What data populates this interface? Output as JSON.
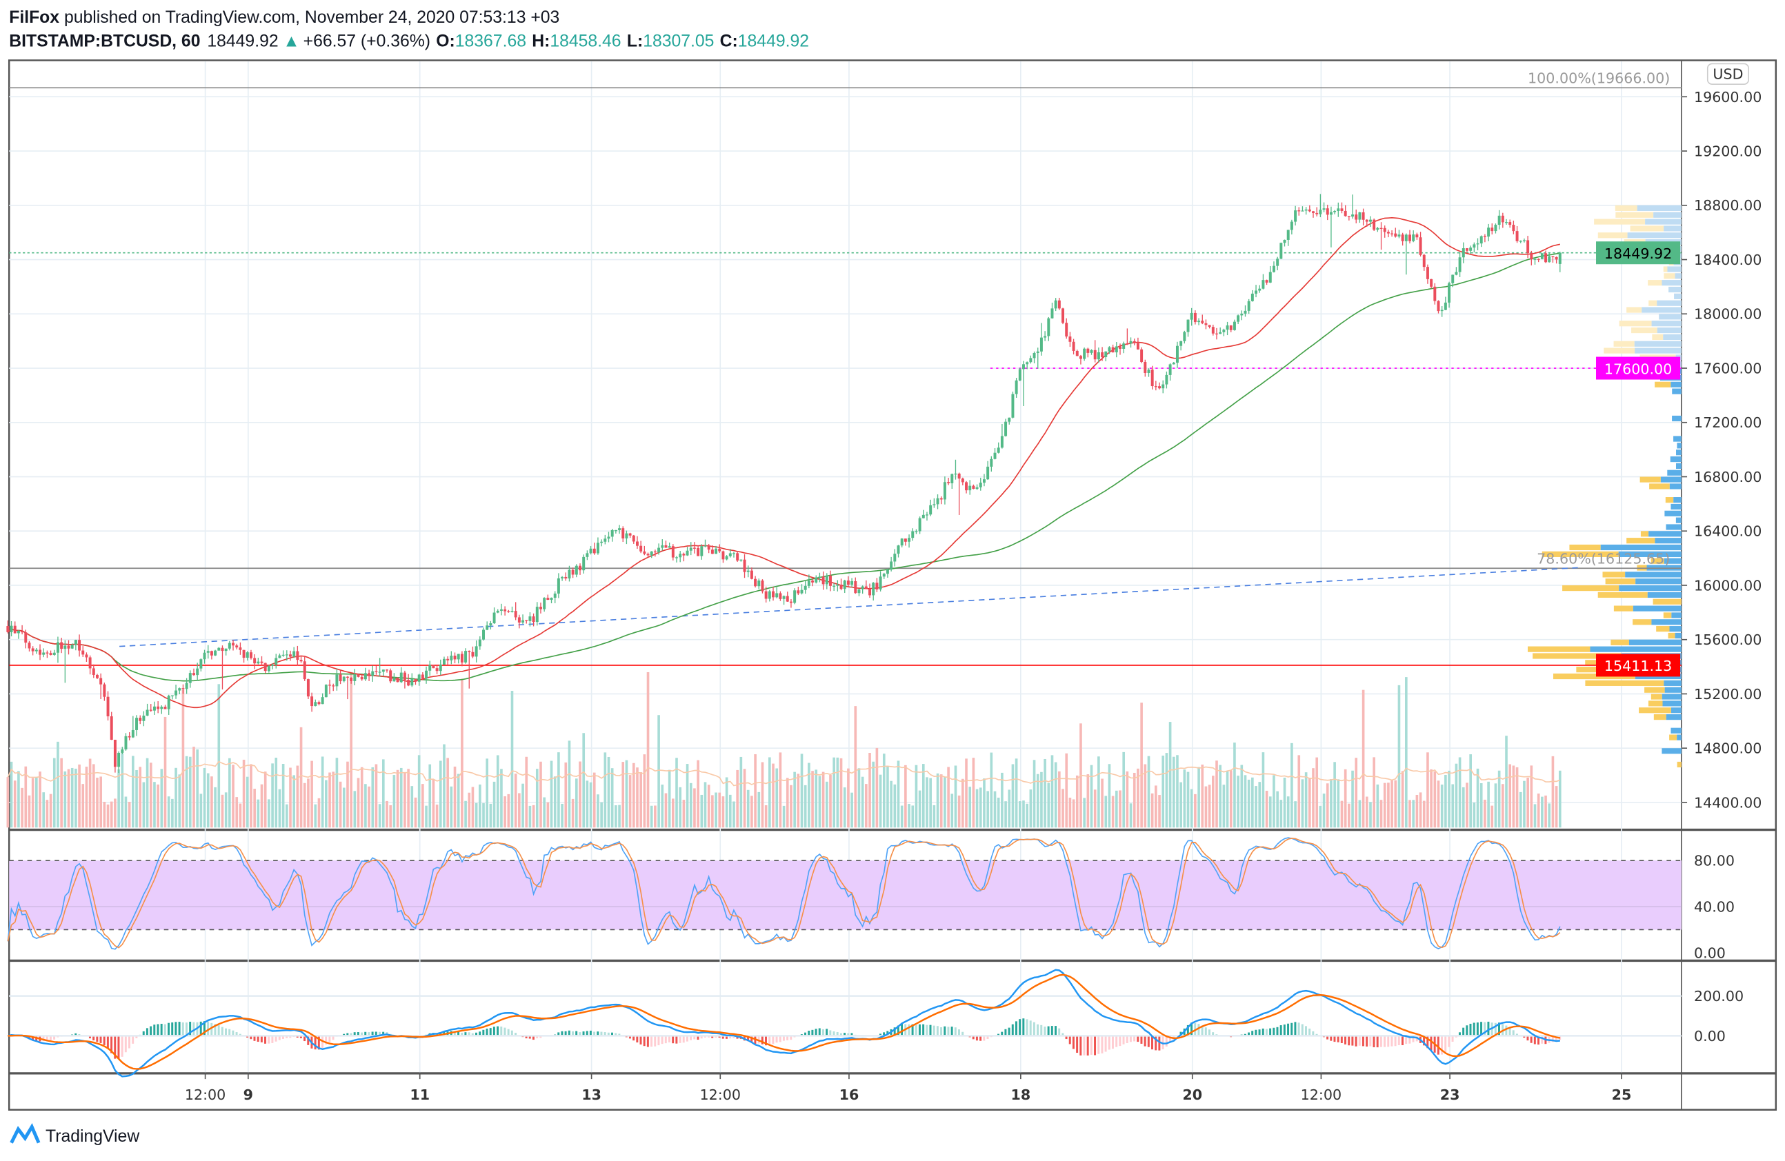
{
  "header": {
    "author": "FilFox",
    "published": " published on TradingView.com, November 24, 2020 07:53:13 +03",
    "symbol": "BITSTAMP:BTCUSD, 60",
    "last": "18449.92",
    "change": "+66.57 (+0.36%)",
    "o_label": "O:",
    "o": "18367.68",
    "h_label": "H:",
    "h": "18458.46",
    "l_label": "L:",
    "l": "18307.05",
    "c_label": "C:",
    "c": "18449.92"
  },
  "currency_button": "USD",
  "logo_text": "TradingView",
  "colors": {
    "up": "#26a69a",
    "down": "#ef5350",
    "last_badge": "#53b987",
    "level_magenta": "#ff00ff",
    "level_red": "#ff0000"
  },
  "chart_data": {
    "type": "candlestick",
    "symbol": "BITSTAMP:BTCUSD",
    "interval": "60",
    "ylim": [
      14300,
      19700
    ],
    "price_ticks": [
      "19600.00",
      "19200.00",
      "18800.00",
      "18400.00",
      "18000.00",
      "17600.00",
      "17200.00",
      "16800.00",
      "16400.00",
      "16000.00",
      "15600.00",
      "15200.00",
      "14800.00",
      "14400.00"
    ],
    "price_tick_values": [
      19600,
      19200,
      18800,
      18400,
      18000,
      17600,
      17200,
      16800,
      16400,
      16000,
      15600,
      15200,
      14800,
      14400
    ],
    "x_ticks": [
      {
        "label": "12:00",
        "day": 8.5
      },
      {
        "label": "9",
        "day": 9
      },
      {
        "label": "11",
        "day": 11
      },
      {
        "label": "13",
        "day": 13
      },
      {
        "label": "12:00",
        "day": 14.5
      },
      {
        "label": "16",
        "day": 16
      },
      {
        "label": "18",
        "day": 18
      },
      {
        "label": "20",
        "day": 20
      },
      {
        "label": "12:00",
        "day": 21.5
      },
      {
        "label": "23",
        "day": 23
      },
      {
        "label": "25",
        "day": 25
      }
    ],
    "approx_close_path": [
      [
        6.2,
        15700
      ],
      [
        6.6,
        15500
      ],
      [
        7.0,
        15600
      ],
      [
        7.3,
        15250
      ],
      [
        7.45,
        14700
      ],
      [
        7.7,
        15000
      ],
      [
        8.0,
        15100
      ],
      [
        8.3,
        15300
      ],
      [
        8.5,
        15500
      ],
      [
        8.8,
        15550
      ],
      [
        9.2,
        15400
      ],
      [
        9.6,
        15500
      ],
      [
        9.65,
        15300
      ],
      [
        9.75,
        15100
      ],
      [
        10.0,
        15300
      ],
      [
        10.5,
        15350
      ],
      [
        10.9,
        15300
      ],
      [
        11.2,
        15400
      ],
      [
        11.6,
        15500
      ],
      [
        11.9,
        15800
      ],
      [
        12.3,
        15750
      ],
      [
        12.6,
        16000
      ],
      [
        12.8,
        16100
      ],
      [
        13.1,
        16300
      ],
      [
        13.3,
        16400
      ],
      [
        13.6,
        16250
      ],
      [
        14.0,
        16250
      ],
      [
        14.4,
        16250
      ],
      [
        14.7,
        16200
      ],
      [
        15.0,
        15950
      ],
      [
        15.3,
        15900
      ],
      [
        15.6,
        16050
      ],
      [
        16.0,
        16000
      ],
      [
        16.2,
        15950
      ],
      [
        16.4,
        16050
      ],
      [
        16.6,
        16300
      ],
      [
        17.0,
        16600
      ],
      [
        17.2,
        16800
      ],
      [
        17.5,
        16700
      ],
      [
        17.8,
        17100
      ],
      [
        18.0,
        17600
      ],
      [
        18.2,
        17700
      ],
      [
        18.4,
        18100
      ],
      [
        18.6,
        17700
      ],
      [
        18.9,
        17700
      ],
      [
        19.3,
        17800
      ],
      [
        19.6,
        17400
      ],
      [
        20.0,
        18000
      ],
      [
        20.3,
        17800
      ],
      [
        20.6,
        18050
      ],
      [
        20.9,
        18300
      ],
      [
        21.2,
        18750
      ],
      [
        21.6,
        18750
      ],
      [
        22.0,
        18700
      ],
      [
        22.3,
        18600
      ],
      [
        22.6,
        18550
      ],
      [
        22.9,
        18000
      ],
      [
        23.1,
        18400
      ],
      [
        23.3,
        18550
      ],
      [
        23.6,
        18700
      ],
      [
        24.0,
        18400
      ],
      [
        24.3,
        18450
      ]
    ],
    "levels": [
      {
        "label": "100.00%(19666.00)",
        "value": 19666
      },
      {
        "label": "78.60%(16125.65)",
        "value": 16125.65
      },
      {
        "label": "17600.00",
        "value": 17600
      },
      {
        "label": "15411.13",
        "value": 15411.13
      },
      {
        "label": "18449.92",
        "value": 18449.92
      }
    ],
    "trendline": {
      "from": [
        7.5,
        15550
      ],
      "to": [
        24.5,
        16130
      ]
    },
    "stoch": {
      "ticks": [
        "80.00",
        "40.00",
        "0.00"
      ],
      "tick_values": [
        80,
        40,
        0
      ],
      "band": [
        20,
        80
      ]
    },
    "macd": {
      "ticks": [
        "200.00",
        "0.00"
      ],
      "tick_values": [
        200,
        0
      ]
    }
  }
}
